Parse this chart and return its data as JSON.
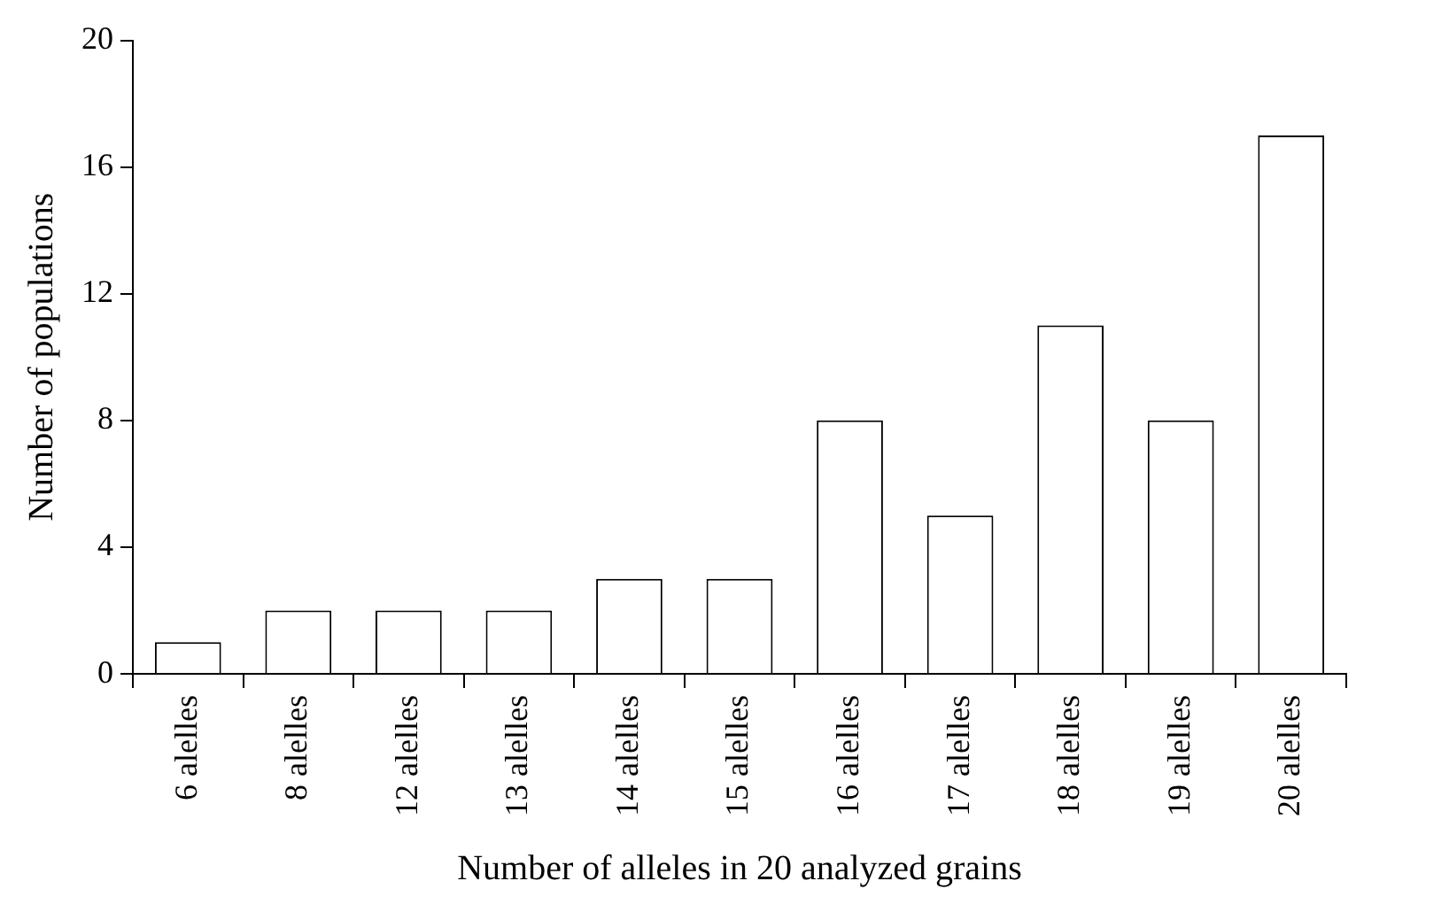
{
  "chart_data": {
    "type": "bar",
    "xlabel": "Number of alleles in 20 analyzed grains",
    "ylabel": "Number of populations",
    "categories": [
      "6 alelles",
      "8 alelles",
      "12 alelles",
      "13 alelles",
      "14 alelles",
      "15 alelles",
      "16 alelles",
      "17 alelles",
      "18 alelles",
      "19 alelles",
      "20 alelles"
    ],
    "values": [
      1,
      2,
      2,
      2,
      3,
      3,
      8,
      5,
      11,
      8,
      17
    ],
    "color": "#ffffff",
    "ylim": [
      0,
      20
    ],
    "yticks": [
      0,
      4,
      8,
      12,
      16,
      20
    ],
    "grid": false,
    "legend": false
  }
}
